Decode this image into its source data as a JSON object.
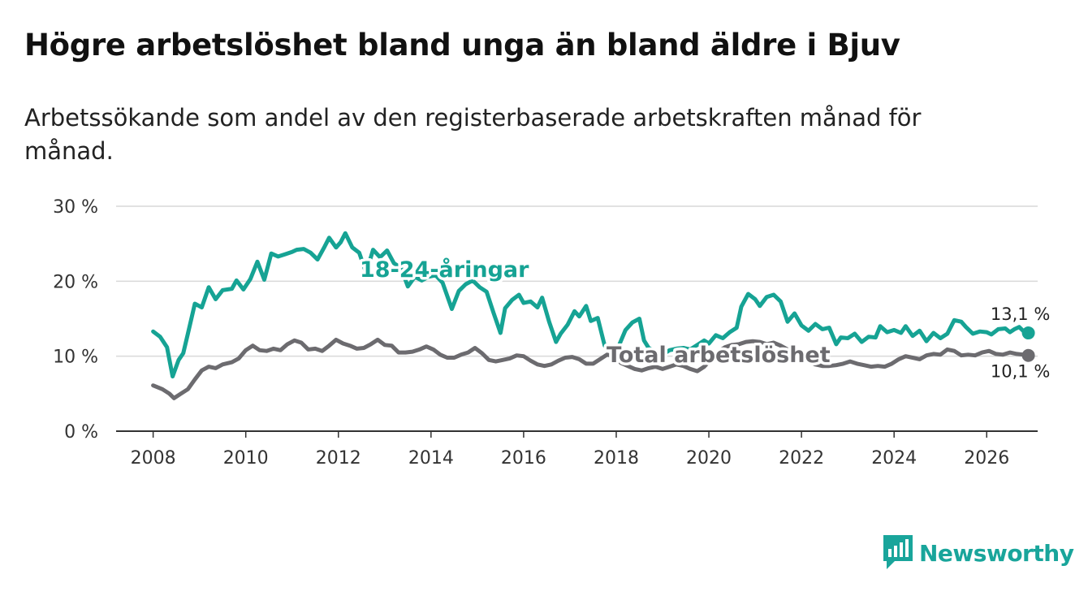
{
  "header": {
    "title": "Högre arbetslöshet bland unga än bland äldre i Bjuv",
    "subtitle": "Arbetssökande som andel av den registerbaserade arbetskraften månad för månad."
  },
  "logo": {
    "text": "Newsworthy",
    "icon": "bar-chart-speech-icon",
    "color": "#19a59b"
  },
  "chart_data": {
    "type": "line",
    "title": "Högre arbetslöshet bland unga än bland äldre i Bjuv",
    "subtitle": "Arbetssökande som andel av den registerbaserade arbetskraften månad för månad.",
    "xlabel": "",
    "ylabel": "",
    "xlim": [
      2007.2,
      2027.1
    ],
    "ylim": [
      0,
      30
    ],
    "x_ticks": [
      2008,
      2010,
      2012,
      2014,
      2016,
      2018,
      2020,
      2022,
      2024,
      2026
    ],
    "x_tick_labels": [
      "2008",
      "2010",
      "2012",
      "2014",
      "2016",
      "2018",
      "2020",
      "2022",
      "2024",
      "2026"
    ],
    "y_ticks": [
      0,
      10,
      20,
      30
    ],
    "y_tick_labels": [
      "0 %",
      "10 %",
      "20 %",
      "30 %"
    ],
    "grid": true,
    "series": [
      {
        "name": "18-24-åringar",
        "label": "18-24-åringar",
        "color": "#16a394",
        "end_label": "13,1 %",
        "points": [
          [
            2008.0,
            13.3
          ],
          [
            2008.15,
            12.6
          ],
          [
            2008.3,
            11.2
          ],
          [
            2008.42,
            7.3
          ],
          [
            2008.55,
            9.5
          ],
          [
            2008.65,
            10.4
          ],
          [
            2008.75,
            13.0
          ],
          [
            2008.9,
            17.0
          ],
          [
            2009.05,
            16.5
          ],
          [
            2009.2,
            19.2
          ],
          [
            2009.35,
            17.6
          ],
          [
            2009.5,
            18.8
          ],
          [
            2009.7,
            19.0
          ],
          [
            2009.8,
            20.1
          ],
          [
            2009.95,
            18.9
          ],
          [
            2010.1,
            20.3
          ],
          [
            2010.25,
            22.6
          ],
          [
            2010.4,
            20.2
          ],
          [
            2010.55,
            23.7
          ],
          [
            2010.7,
            23.3
          ],
          [
            2010.85,
            23.6
          ],
          [
            2011.0,
            23.9
          ],
          [
            2011.1,
            24.2
          ],
          [
            2011.25,
            24.3
          ],
          [
            2011.4,
            23.8
          ],
          [
            2011.55,
            22.9
          ],
          [
            2011.7,
            24.6
          ],
          [
            2011.8,
            25.8
          ],
          [
            2011.95,
            24.5
          ],
          [
            2012.05,
            25.2
          ],
          [
            2012.15,
            26.4
          ],
          [
            2012.3,
            24.5
          ],
          [
            2012.45,
            23.8
          ],
          [
            2012.6,
            21.1
          ],
          [
            2012.75,
            24.2
          ],
          [
            2012.9,
            23.2
          ],
          [
            2013.05,
            24.1
          ],
          [
            2013.2,
            22.4
          ],
          [
            2013.35,
            21.8
          ],
          [
            2013.5,
            19.3
          ],
          [
            2013.65,
            20.6
          ],
          [
            2013.8,
            20.1
          ],
          [
            2013.95,
            20.6
          ],
          [
            2014.1,
            20.8
          ],
          [
            2014.25,
            19.8
          ],
          [
            2014.45,
            16.3
          ],
          [
            2014.6,
            18.7
          ],
          [
            2014.75,
            19.6
          ],
          [
            2014.9,
            20.1
          ],
          [
            2015.05,
            19.2
          ],
          [
            2015.2,
            18.6
          ],
          [
            2015.35,
            15.8
          ],
          [
            2015.5,
            13.1
          ],
          [
            2015.6,
            16.4
          ],
          [
            2015.75,
            17.5
          ],
          [
            2015.9,
            18.2
          ],
          [
            2016.0,
            17.1
          ],
          [
            2016.15,
            17.3
          ],
          [
            2016.3,
            16.5
          ],
          [
            2016.4,
            17.8
          ],
          [
            2016.55,
            14.6
          ],
          [
            2016.7,
            11.9
          ],
          [
            2016.8,
            13.0
          ],
          [
            2016.95,
            14.2
          ],
          [
            2017.1,
            16.0
          ],
          [
            2017.2,
            15.3
          ],
          [
            2017.35,
            16.7
          ],
          [
            2017.45,
            14.7
          ],
          [
            2017.6,
            15.1
          ],
          [
            2017.75,
            11.4
          ],
          [
            2017.9,
            11.0
          ],
          [
            2018.05,
            11.3
          ],
          [
            2018.2,
            13.5
          ],
          [
            2018.35,
            14.5
          ],
          [
            2018.5,
            15.0
          ],
          [
            2018.6,
            12.1
          ],
          [
            2018.7,
            11.1
          ],
          [
            2018.85,
            10.6
          ],
          [
            2019.0,
            10.2
          ],
          [
            2019.15,
            10.8
          ],
          [
            2019.3,
            11.0
          ],
          [
            2019.45,
            11.1
          ],
          [
            2019.6,
            10.9
          ],
          [
            2019.75,
            11.5
          ],
          [
            2019.9,
            12.1
          ],
          [
            2020.0,
            11.7
          ],
          [
            2020.15,
            12.8
          ],
          [
            2020.3,
            12.4
          ],
          [
            2020.45,
            13.2
          ],
          [
            2020.6,
            13.8
          ],
          [
            2020.7,
            16.6
          ],
          [
            2020.85,
            18.3
          ],
          [
            2021.0,
            17.6
          ],
          [
            2021.1,
            16.7
          ],
          [
            2021.25,
            17.9
          ],
          [
            2021.4,
            18.2
          ],
          [
            2021.55,
            17.3
          ],
          [
            2021.7,
            14.6
          ],
          [
            2021.85,
            15.7
          ],
          [
            2022.0,
            14.1
          ],
          [
            2022.15,
            13.4
          ],
          [
            2022.3,
            14.3
          ],
          [
            2022.45,
            13.6
          ],
          [
            2022.6,
            13.8
          ],
          [
            2022.75,
            11.6
          ],
          [
            2022.85,
            12.5
          ],
          [
            2023.0,
            12.4
          ],
          [
            2023.15,
            13.0
          ],
          [
            2023.3,
            11.9
          ],
          [
            2023.45,
            12.6
          ],
          [
            2023.6,
            12.5
          ],
          [
            2023.7,
            14.0
          ],
          [
            2023.85,
            13.2
          ],
          [
            2024.0,
            13.5
          ],
          [
            2024.15,
            13.1
          ],
          [
            2024.25,
            14.0
          ],
          [
            2024.4,
            12.7
          ],
          [
            2024.55,
            13.4
          ],
          [
            2024.7,
            12.0
          ],
          [
            2024.85,
            13.1
          ],
          [
            2025.0,
            12.4
          ],
          [
            2025.15,
            13.0
          ],
          [
            2025.3,
            14.8
          ],
          [
            2025.45,
            14.6
          ],
          [
            2025.55,
            13.9
          ],
          [
            2025.7,
            13.0
          ],
          [
            2025.85,
            13.3
          ],
          [
            2026.0,
            13.2
          ],
          [
            2026.1,
            12.9
          ],
          [
            2026.25,
            13.6
          ],
          [
            2026.4,
            13.7
          ],
          [
            2026.5,
            13.2
          ],
          [
            2026.6,
            13.6
          ],
          [
            2026.7,
            13.9
          ],
          [
            2026.8,
            13.3
          ],
          [
            2026.9,
            13.1
          ]
        ]
      },
      {
        "name": "Total arbetslöshet",
        "label": "Total arbetslöshet",
        "color": "#6c6b6f",
        "end_label": "10,1 %",
        "points": [
          [
            2008.0,
            6.1
          ],
          [
            2008.2,
            5.6
          ],
          [
            2008.35,
            5.0
          ],
          [
            2008.45,
            4.4
          ],
          [
            2008.6,
            5.0
          ],
          [
            2008.75,
            5.6
          ],
          [
            2008.9,
            6.9
          ],
          [
            2009.05,
            8.1
          ],
          [
            2009.2,
            8.6
          ],
          [
            2009.35,
            8.4
          ],
          [
            2009.5,
            8.9
          ],
          [
            2009.7,
            9.2
          ],
          [
            2009.85,
            9.7
          ],
          [
            2010.0,
            10.8
          ],
          [
            2010.15,
            11.4
          ],
          [
            2010.3,
            10.8
          ],
          [
            2010.45,
            10.7
          ],
          [
            2010.6,
            11.0
          ],
          [
            2010.75,
            10.8
          ],
          [
            2010.9,
            11.6
          ],
          [
            2011.05,
            12.1
          ],
          [
            2011.2,
            11.8
          ],
          [
            2011.35,
            10.9
          ],
          [
            2011.5,
            11.0
          ],
          [
            2011.65,
            10.7
          ],
          [
            2011.8,
            11.4
          ],
          [
            2011.95,
            12.2
          ],
          [
            2012.1,
            11.7
          ],
          [
            2012.25,
            11.4
          ],
          [
            2012.4,
            11.0
          ],
          [
            2012.55,
            11.1
          ],
          [
            2012.7,
            11.6
          ],
          [
            2012.85,
            12.2
          ],
          [
            2013.0,
            11.5
          ],
          [
            2013.15,
            11.4
          ],
          [
            2013.3,
            10.5
          ],
          [
            2013.45,
            10.5
          ],
          [
            2013.6,
            10.6
          ],
          [
            2013.75,
            10.9
          ],
          [
            2013.9,
            11.3
          ],
          [
            2014.05,
            10.9
          ],
          [
            2014.2,
            10.2
          ],
          [
            2014.35,
            9.8
          ],
          [
            2014.5,
            9.8
          ],
          [
            2014.65,
            10.2
          ],
          [
            2014.8,
            10.5
          ],
          [
            2014.95,
            11.1
          ],
          [
            2015.1,
            10.4
          ],
          [
            2015.25,
            9.5
          ],
          [
            2015.4,
            9.3
          ],
          [
            2015.55,
            9.5
          ],
          [
            2015.7,
            9.7
          ],
          [
            2015.85,
            10.1
          ],
          [
            2016.0,
            10.0
          ],
          [
            2016.15,
            9.4
          ],
          [
            2016.3,
            8.9
          ],
          [
            2016.45,
            8.7
          ],
          [
            2016.6,
            8.9
          ],
          [
            2016.75,
            9.4
          ],
          [
            2016.9,
            9.8
          ],
          [
            2017.05,
            9.9
          ],
          [
            2017.2,
            9.6
          ],
          [
            2017.35,
            9.0
          ],
          [
            2017.5,
            9.0
          ],
          [
            2017.65,
            9.6
          ],
          [
            2017.8,
            10.2
          ],
          [
            2017.95,
            10.0
          ],
          [
            2018.1,
            9.1
          ],
          [
            2018.25,
            8.7
          ],
          [
            2018.4,
            8.3
          ],
          [
            2018.55,
            8.1
          ],
          [
            2018.7,
            8.4
          ],
          [
            2018.85,
            8.6
          ],
          [
            2019.0,
            8.3
          ],
          [
            2019.15,
            8.6
          ],
          [
            2019.3,
            8.9
          ],
          [
            2019.45,
            8.7
          ],
          [
            2019.6,
            8.3
          ],
          [
            2019.75,
            8.0
          ],
          [
            2019.9,
            8.6
          ],
          [
            2020.05,
            9.6
          ],
          [
            2020.2,
            10.6
          ],
          [
            2020.35,
            11.2
          ],
          [
            2020.5,
            11.5
          ],
          [
            2020.65,
            11.6
          ],
          [
            2020.8,
            11.9
          ],
          [
            2020.95,
            12.0
          ],
          [
            2021.1,
            11.9
          ],
          [
            2021.25,
            11.6
          ],
          [
            2021.4,
            11.8
          ],
          [
            2021.55,
            11.4
          ],
          [
            2021.7,
            10.9
          ],
          [
            2021.85,
            10.6
          ],
          [
            2022.0,
            9.9
          ],
          [
            2022.15,
            9.3
          ],
          [
            2022.3,
            8.9
          ],
          [
            2022.45,
            8.7
          ],
          [
            2022.6,
            8.7
          ],
          [
            2022.75,
            8.8
          ],
          [
            2022.9,
            9.0
          ],
          [
            2023.05,
            9.3
          ],
          [
            2023.2,
            9.0
          ],
          [
            2023.35,
            8.8
          ],
          [
            2023.5,
            8.6
          ],
          [
            2023.65,
            8.7
          ],
          [
            2023.8,
            8.6
          ],
          [
            2023.95,
            9.0
          ],
          [
            2024.1,
            9.6
          ],
          [
            2024.25,
            10.0
          ],
          [
            2024.4,
            9.8
          ],
          [
            2024.55,
            9.6
          ],
          [
            2024.7,
            10.1
          ],
          [
            2024.85,
            10.3
          ],
          [
            2025.0,
            10.2
          ],
          [
            2025.15,
            10.9
          ],
          [
            2025.3,
            10.7
          ],
          [
            2025.45,
            10.1
          ],
          [
            2025.6,
            10.2
          ],
          [
            2025.75,
            10.1
          ],
          [
            2025.9,
            10.5
          ],
          [
            2026.05,
            10.7
          ],
          [
            2026.2,
            10.3
          ],
          [
            2026.35,
            10.2
          ],
          [
            2026.5,
            10.5
          ],
          [
            2026.65,
            10.3
          ],
          [
            2026.8,
            10.2
          ],
          [
            2026.9,
            10.1
          ]
        ]
      }
    ]
  }
}
